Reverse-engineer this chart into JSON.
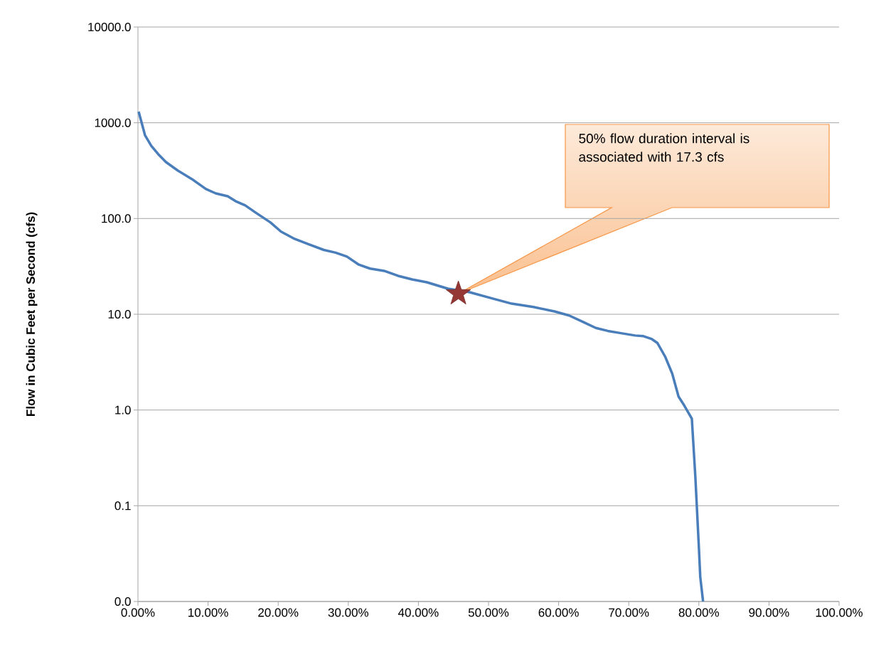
{
  "chart_data": {
    "type": "line",
    "ylabel": "Flow in Cubic Feet per Second (cfs)",
    "log": "y",
    "grid": "y",
    "xlim": [
      0,
      100
    ],
    "ylim": [
      0.01,
      10000
    ],
    "xticks": [
      {
        "value": 0,
        "label": "0.00%"
      },
      {
        "value": 10,
        "label": "10.00%"
      },
      {
        "value": 20,
        "label": "20.00%"
      },
      {
        "value": 30,
        "label": "30.00%"
      },
      {
        "value": 40,
        "label": "40.00%"
      },
      {
        "value": 50,
        "label": "50.00%"
      },
      {
        "value": 60,
        "label": "60.00%"
      },
      {
        "value": 70,
        "label": "70.00%"
      },
      {
        "value": 80,
        "label": "80.00%"
      },
      {
        "value": 90,
        "label": "90.00%"
      },
      {
        "value": 100,
        "label": "100.00%"
      }
    ],
    "yticks": [
      {
        "value": 0.01,
        "label": "0.0"
      },
      {
        "value": 0.1,
        "label": "0.1"
      },
      {
        "value": 1,
        "label": "1.0"
      },
      {
        "value": 10,
        "label": "10.0"
      },
      {
        "value": 100,
        "label": "100.0"
      },
      {
        "value": 1000,
        "label": "1000.0"
      },
      {
        "value": 10000,
        "label": "10000.0"
      }
    ],
    "series": [
      {
        "color": "#4a7ebb",
        "marker": "none",
        "line_style": "solid",
        "x": [
          0.1,
          1.0,
          1.9,
          2.9,
          4.0,
          5.7,
          7.7,
          9.7,
          11.1,
          12.8,
          13.9,
          15.3,
          16.8,
          18.9,
          20.4,
          22.2,
          24.3,
          26.5,
          28.2,
          29.8,
          31.5,
          33.1,
          35.1,
          37.1,
          39.1,
          41.2,
          44.2,
          47.3,
          50.3,
          53.3,
          56.4,
          59.4,
          61.5,
          63.5,
          65.3,
          67.0,
          68.6,
          70.9,
          72.1,
          73.3,
          74.1,
          75.2,
          76.2,
          77.1,
          77.9,
          79.0,
          79.5,
          80.0,
          80.2,
          80.6
        ],
        "values": [
          1306,
          743,
          575,
          469,
          388,
          316,
          258,
          203,
          183,
          171,
          152,
          137,
          115,
          91,
          73,
          62,
          54,
          47,
          44,
          40,
          33,
          30,
          28.4,
          25.2,
          23.1,
          21.6,
          18.5,
          17.0,
          14.8,
          12.9,
          11.9,
          10.7,
          9.7,
          8.3,
          7.2,
          6.7,
          6.4,
          6.0,
          5.9,
          5.5,
          5.0,
          3.6,
          2.4,
          1.38,
          1.12,
          0.81,
          0.2,
          0.037,
          0.018,
          0.01
        ]
      },
      {
        "type": "scatter",
        "color": "#953735",
        "marker": "star",
        "x": [
          45.7
        ],
        "values": [
          16.4
        ]
      }
    ],
    "annotations": [
      "50% flow duration interval is associated with 17.3 cfs"
    ]
  }
}
